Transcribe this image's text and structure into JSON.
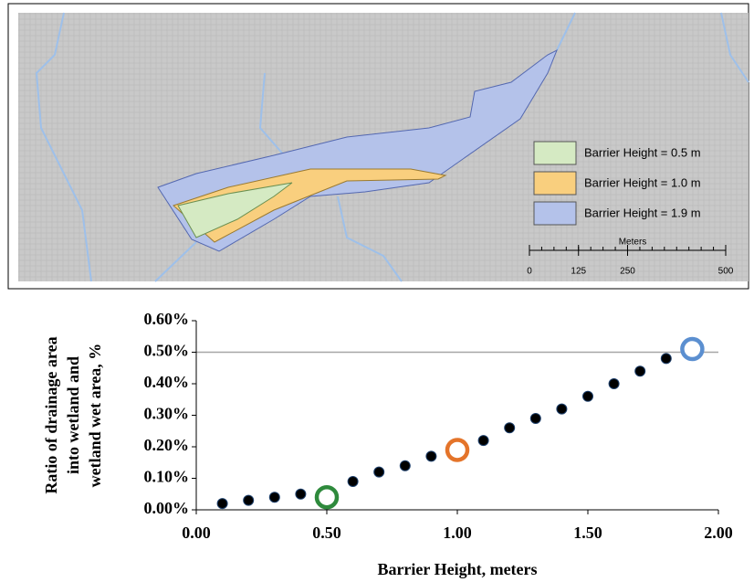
{
  "map": {
    "legend": [
      {
        "label": "Barrier Height = 0.5 m",
        "color": "#d5eac3"
      },
      {
        "label": "Barrier Height = 1.0 m",
        "color": "#f9cf7e"
      },
      {
        "label": "Barrier Height = 1.9 m",
        "color": "#b4c2ea"
      }
    ],
    "scale_bar": {
      "title": "Meters",
      "ticks": [
        0,
        125,
        250,
        500
      ]
    }
  },
  "chart_data": {
    "type": "scatter",
    "xlabel": "Barrier Height, meters",
    "ylabel": [
      "Ratio of drainage area",
      "into wetland and",
      "wetland wet area, %"
    ],
    "x": [
      0.1,
      0.2,
      0.3,
      0.4,
      0.5,
      0.6,
      0.7,
      0.8,
      0.9,
      1.0,
      1.1,
      1.2,
      1.3,
      1.4,
      1.5,
      1.6,
      1.7,
      1.8,
      1.9
    ],
    "series": [
      {
        "color": "#000000",
        "marker": "dot",
        "values": [
          0.02,
          0.03,
          0.04,
          0.05,
          null,
          0.09,
          0.12,
          0.14,
          0.17,
          null,
          0.22,
          0.26,
          0.29,
          0.32,
          0.36,
          0.4,
          0.44,
          0.48,
          null
        ]
      },
      {
        "color": "#2e8a3c",
        "marker": "ring",
        "values": [
          null,
          null,
          null,
          null,
          0.04,
          null,
          null,
          null,
          null,
          null,
          null,
          null,
          null,
          null,
          null,
          null,
          null,
          null,
          null
        ]
      },
      {
        "color": "#e4742a",
        "marker": "ring",
        "values": [
          null,
          null,
          null,
          null,
          null,
          null,
          null,
          null,
          null,
          0.19,
          null,
          null,
          null,
          null,
          null,
          null,
          null,
          null,
          null
        ]
      },
      {
        "color": "#5b8fd0",
        "marker": "ring",
        "values": [
          null,
          null,
          null,
          null,
          null,
          null,
          null,
          null,
          null,
          null,
          null,
          null,
          null,
          null,
          null,
          null,
          null,
          null,
          0.51
        ]
      }
    ],
    "xlim": [
      0,
      2
    ],
    "ylim": [
      0,
      0.6
    ],
    "xticks": [
      {
        "value": 0,
        "label": "0.00"
      },
      {
        "value": 0.5,
        "label": "0.50"
      },
      {
        "value": 1,
        "label": "1.00"
      },
      {
        "value": 1.5,
        "label": "1.50"
      },
      {
        "value": 2,
        "label": "2.00"
      }
    ],
    "yticks": [
      {
        "value": 0,
        "label": "0.00%"
      },
      {
        "value": 0.1,
        "label": "0.10%"
      },
      {
        "value": 0.2,
        "label": "0.20%"
      },
      {
        "value": 0.3,
        "label": "0.30%"
      },
      {
        "value": 0.4,
        "label": "0.40%"
      },
      {
        "value": 0.5,
        "label": "0.50%"
      },
      {
        "value": 0.6,
        "label": "0.60%"
      }
    ],
    "hline": 0.5
  }
}
